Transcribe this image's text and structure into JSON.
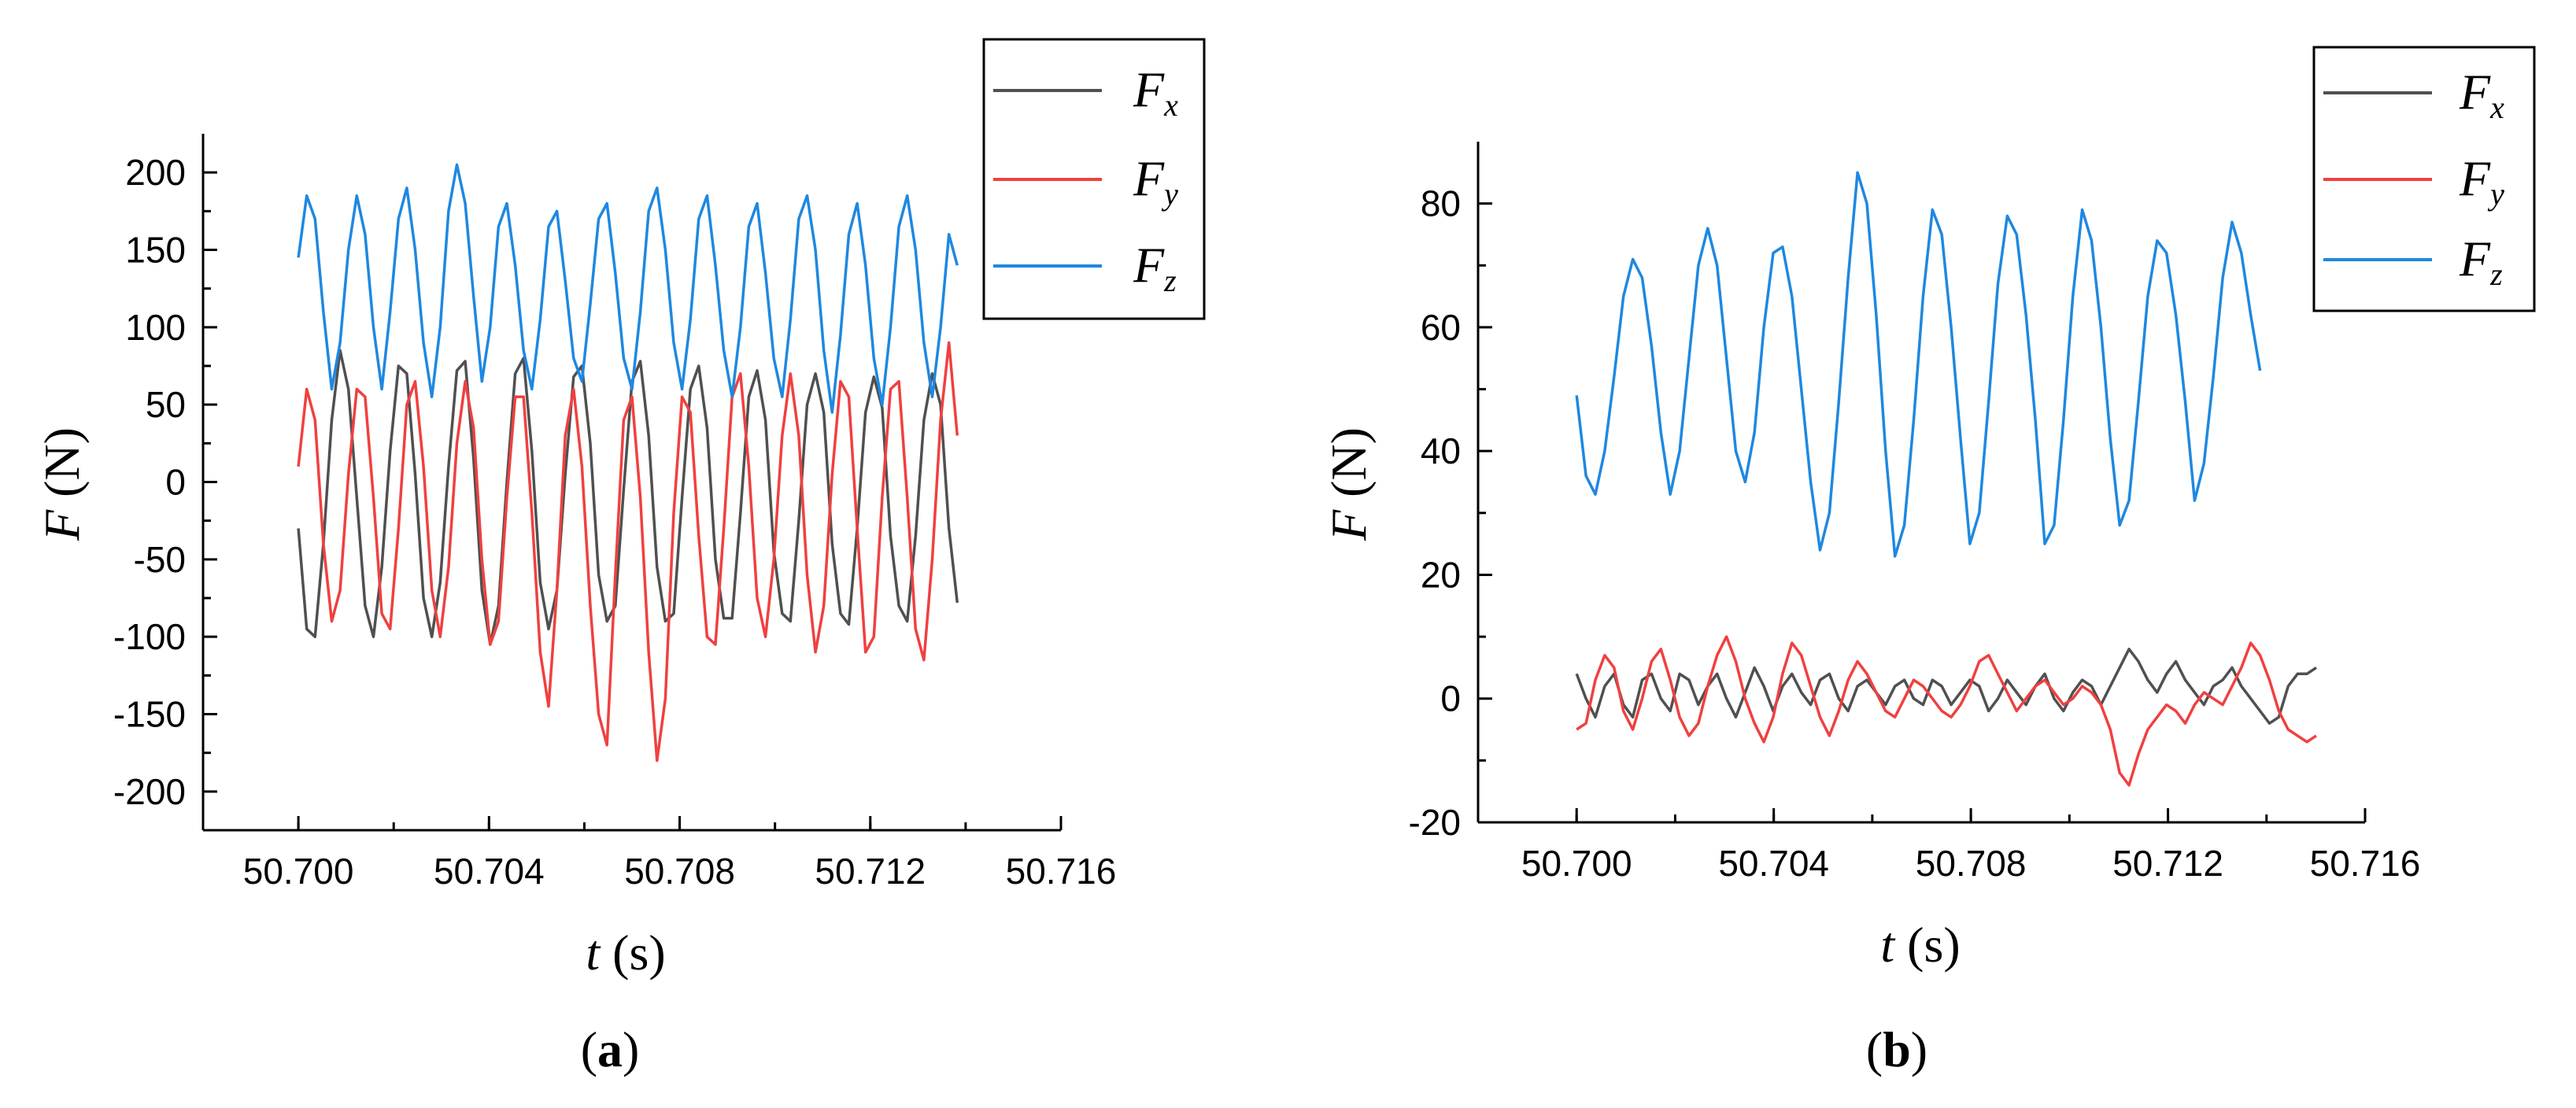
{
  "figure": {
    "panel_labels": [
      {
        "open": "(",
        "letter": "a",
        "close": ")"
      },
      {
        "open": "(",
        "letter": "b",
        "close": ")"
      }
    ]
  },
  "chart_data": [
    {
      "type": "line",
      "xlabel": {
        "var": "t",
        "unit": " (s)"
      },
      "ylabel": {
        "var": "F",
        "unit": " (N)"
      },
      "xlim": [
        50.698,
        50.716
      ],
      "ylim": [
        -225,
        225
      ],
      "xticks": [
        "50.700",
        "50.704",
        "50.708",
        "50.712",
        "50.716"
      ],
      "xtick_values": [
        50.7,
        50.704,
        50.708,
        50.712,
        50.716
      ],
      "yticks": [
        "200",
        "150",
        "100",
        "50",
        "0",
        "-50",
        "-100",
        "-150",
        "-200"
      ],
      "ytick_values": [
        200,
        150,
        100,
        50,
        0,
        -50,
        -100,
        -150,
        -200
      ],
      "grid": false,
      "legend_position": "top-right",
      "x_range": [
        50.7,
        50.714
      ],
      "series": [
        {
          "name": "F",
          "sub": "x",
          "color": "#505050",
          "x_start": 50.7,
          "x_step": 0.000175,
          "values": [
            -30,
            -95,
            -100,
            -40,
            40,
            85,
            60,
            -10,
            -80,
            -100,
            -55,
            20,
            75,
            70,
            5,
            -75,
            -100,
            -65,
            10,
            72,
            78,
            15,
            -70,
            -105,
            -80,
            0,
            70,
            80,
            20,
            -65,
            -95,
            -70,
            5,
            68,
            75,
            25,
            -60,
            -90,
            -80,
            -5,
            65,
            78,
            30,
            -55,
            -90,
            -85,
            -10,
            60,
            75,
            35,
            -50,
            -88,
            -88,
            -20,
            55,
            72,
            40,
            -45,
            -85,
            -90,
            -25,
            50,
            70,
            45,
            -40,
            -85,
            -92,
            -30,
            45,
            68,
            48,
            -35,
            -80,
            -90,
            -35,
            40,
            70,
            50,
            -30,
            -78
          ]
        },
        {
          "name": "F",
          "sub": "y",
          "color": "#f04040",
          "x_start": 50.7,
          "x_step": 0.000175,
          "values": [
            10,
            60,
            40,
            -40,
            -90,
            -70,
            5,
            60,
            55,
            -10,
            -85,
            -95,
            -30,
            50,
            65,
            10,
            -70,
            -100,
            -55,
            25,
            65,
            35,
            -50,
            -105,
            -90,
            -10,
            55,
            55,
            -20,
            -110,
            -145,
            -70,
            30,
            60,
            10,
            -80,
            -150,
            -170,
            -60,
            40,
            55,
            -10,
            -110,
            -180,
            -140,
            -20,
            55,
            45,
            -35,
            -100,
            -105,
            -30,
            55,
            70,
            10,
            -75,
            -100,
            -50,
            30,
            70,
            30,
            -60,
            -110,
            -80,
            5,
            65,
            55,
            -30,
            -110,
            -100,
            -10,
            60,
            65,
            -10,
            -95,
            -115,
            -50,
            40,
            90,
            30
          ]
        },
        {
          "name": "F",
          "sub": "z",
          "color": "#1e88e0",
          "x_start": 50.7,
          "x_step": 0.000175,
          "values": [
            145,
            185,
            170,
            110,
            60,
            90,
            150,
            185,
            160,
            100,
            60,
            110,
            170,
            190,
            150,
            90,
            55,
            100,
            175,
            205,
            180,
            120,
            65,
            100,
            165,
            180,
            140,
            85,
            60,
            105,
            165,
            175,
            130,
            80,
            65,
            115,
            170,
            180,
            135,
            80,
            60,
            110,
            175,
            190,
            150,
            90,
            60,
            105,
            170,
            185,
            140,
            85,
            55,
            100,
            165,
            180,
            135,
            80,
            55,
            105,
            170,
            185,
            150,
            85,
            45,
            95,
            160,
            180,
            140,
            80,
            50,
            100,
            165,
            185,
            150,
            90,
            55,
            100,
            160,
            140
          ]
        }
      ]
    },
    {
      "type": "line",
      "xlabel": {
        "var": "t",
        "unit": " (s)"
      },
      "ylabel": {
        "var": "F",
        "unit": " (N)"
      },
      "xlim": [
        50.698,
        50.716
      ],
      "ylim": [
        -20,
        90
      ],
      "xticks": [
        "50.700",
        "50.704",
        "50.708",
        "50.712",
        "50.716"
      ],
      "xtick_values": [
        50.7,
        50.704,
        50.708,
        50.712,
        50.716
      ],
      "yticks": [
        "80",
        "60",
        "40",
        "20",
        "0",
        "-20"
      ],
      "ytick_values": [
        80,
        60,
        40,
        20,
        0,
        -20
      ],
      "grid": false,
      "legend_position": "top-right",
      "x_range": [
        50.7,
        50.7152
      ],
      "series": [
        {
          "name": "F",
          "sub": "x",
          "color": "#505050",
          "x_start": 50.7,
          "x_step": 0.00019,
          "values": [
            4,
            0,
            -3,
            2,
            4,
            -1,
            -3,
            3,
            4,
            0,
            -2,
            4,
            3,
            -1,
            2,
            4,
            0,
            -3,
            1,
            5,
            2,
            -2,
            2,
            4,
            1,
            -1,
            3,
            4,
            0,
            -2,
            2,
            3,
            1,
            -1,
            2,
            3,
            0,
            -1,
            3,
            2,
            -1,
            1,
            3,
            2,
            -2,
            0,
            3,
            1,
            -1,
            2,
            4,
            0,
            -2,
            1,
            3,
            2,
            -1,
            2,
            5,
            8,
            6,
            3,
            1,
            4,
            6,
            3,
            1,
            -1,
            2,
            3,
            5,
            2,
            0,
            -2,
            -4,
            -3,
            2,
            4,
            4,
            5
          ]
        },
        {
          "name": "F",
          "sub": "y",
          "color": "#f04040",
          "x_start": 50.7,
          "x_step": 0.00019,
          "values": [
            -5,
            -4,
            3,
            7,
            5,
            -2,
            -5,
            0,
            6,
            8,
            3,
            -3,
            -6,
            -4,
            2,
            7,
            10,
            6,
            0,
            -4,
            -7,
            -3,
            4,
            9,
            7,
            2,
            -3,
            -6,
            -2,
            3,
            6,
            4,
            1,
            -2,
            -3,
            0,
            3,
            2,
            0,
            -2,
            -3,
            -1,
            2,
            6,
            7,
            4,
            1,
            -2,
            0,
            2,
            3,
            1,
            -1,
            0,
            2,
            1,
            -1,
            -5,
            -12,
            -14,
            -9,
            -5,
            -3,
            -1,
            -2,
            -4,
            -1,
            1,
            0,
            -1,
            2,
            5,
            9,
            7,
            3,
            -2,
            -5,
            -6,
            -7,
            -6
          ]
        },
        {
          "name": "F",
          "sub": "z",
          "color": "#1e88e0",
          "x_start": 50.7,
          "x_step": 0.00019,
          "values": [
            49,
            36,
            33,
            40,
            52,
            65,
            71,
            68,
            57,
            43,
            33,
            40,
            55,
            70,
            76,
            70,
            55,
            40,
            35,
            43,
            60,
            72,
            73,
            65,
            50,
            35,
            24,
            30,
            48,
            68,
            85,
            80,
            62,
            40,
            23,
            28,
            45,
            65,
            79,
            75,
            60,
            42,
            25,
            30,
            48,
            67,
            78,
            75,
            62,
            45,
            25,
            28,
            45,
            65,
            79,
            74,
            60,
            42,
            28,
            32,
            48,
            65,
            74,
            72,
            62,
            48,
            32,
            38,
            52,
            68,
            77,
            72,
            62,
            53
          ]
        }
      ]
    }
  ]
}
